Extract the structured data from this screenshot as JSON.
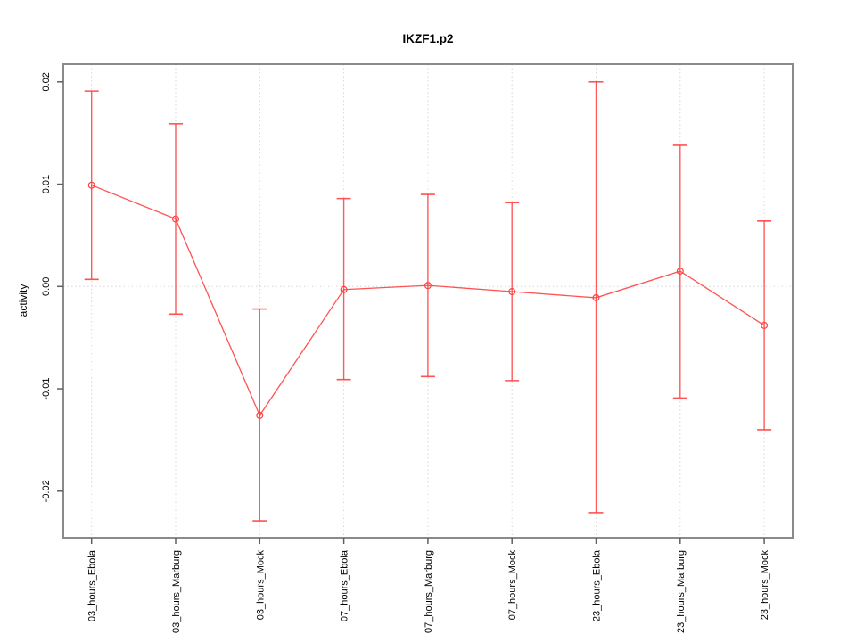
{
  "chart_data": {
    "type": "line",
    "subtype": "points-with-error-bars",
    "title": "IKZF1.p2",
    "xlabel": "",
    "ylabel": "activity",
    "categories": [
      "03_hours_Ebola",
      "03_hours_Marburg",
      "03_hours_Mock",
      "07_hours_Ebola",
      "07_hours_Marburg",
      "07_hours_Mock",
      "23_hours_Ebola",
      "23_hours_Marburg",
      "23_hours_Mock"
    ],
    "series": [
      {
        "name": "activity",
        "values": [
          0.0099,
          0.0066,
          -0.0126,
          -0.0003,
          0.0001,
          -0.0005,
          -0.0011,
          0.0015,
          -0.0038
        ],
        "upper": [
          0.0191,
          0.0159,
          -0.0022,
          0.0086,
          0.009,
          0.0082,
          0.02,
          0.0138,
          0.0064
        ],
        "lower": [
          0.0007,
          -0.0027,
          -0.0229,
          -0.0091,
          -0.0088,
          -0.0092,
          -0.0221,
          -0.0109,
          -0.014
        ]
      }
    ],
    "yticks": [
      -0.02,
      -0.01,
      0,
      0.01,
      0.02
    ],
    "ytick_labels": [
      "-0.02",
      "-0.01",
      "0.00",
      "0.01",
      "0.02"
    ],
    "ylim": [
      -0.0246,
      0.0217
    ],
    "grid": "vertical dotted line at each category; horizontal dotted line at y=0",
    "legend": "none",
    "marker": "open-circle",
    "colors": {
      "series": "#ff4040",
      "grid": "#d6d6d6",
      "box": "#8a8a8a",
      "tick": "#606060",
      "text": "#000000",
      "background": "#ffffff"
    }
  }
}
